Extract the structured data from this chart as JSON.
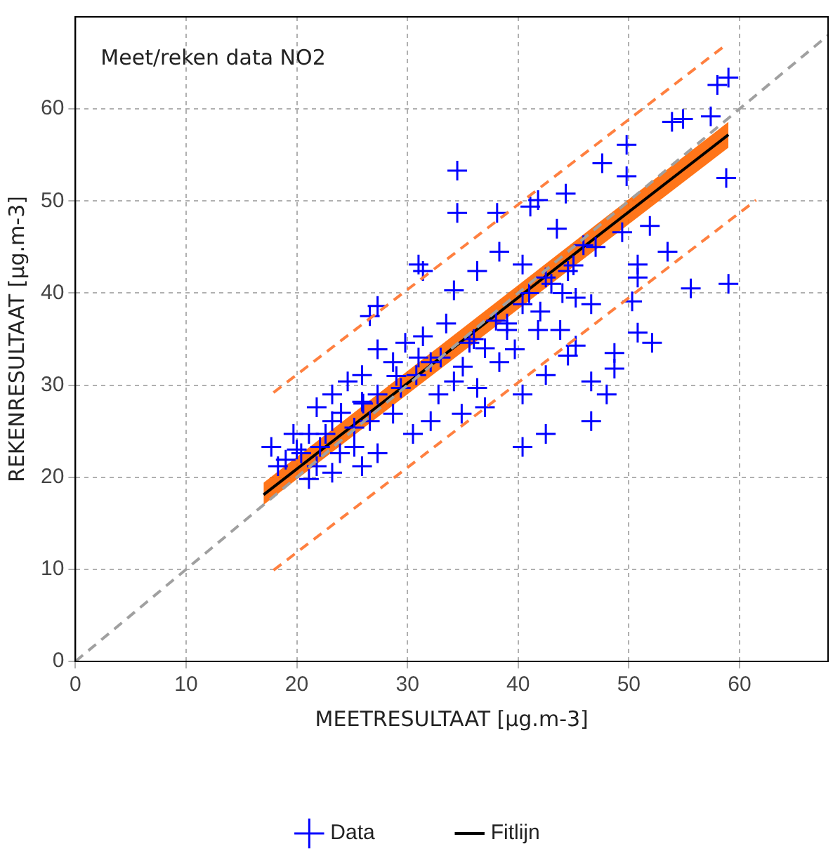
{
  "chart_data": {
    "type": "scatter",
    "title": "Meet/reken data NO2",
    "xlabel": "MEETRESULTAAT [µg.m-3]",
    "ylabel": "REKENRESULTAAT [µg.m-3]",
    "xlim": [
      0,
      68
    ],
    "ylim": [
      0,
      70
    ],
    "xticks": [
      0,
      10,
      20,
      30,
      40,
      50,
      60
    ],
    "yticks": [
      0,
      10,
      20,
      30,
      40,
      50,
      60
    ],
    "grid": true,
    "legend": "bottom",
    "series": [
      {
        "type": "line",
        "color": "#a0a0a0",
        "line_style": "dashed",
        "marker": "none",
        "x": [
          0,
          68
        ],
        "values": [
          0,
          68
        ]
      },
      {
        "type": "line",
        "color": "#ff8040",
        "line_style": "dashed",
        "marker": "none",
        "x": [
          17.9,
          58.6
        ],
        "values": [
          29.2,
          66.8
        ]
      },
      {
        "type": "line",
        "color": "#ff8040",
        "line_style": "dashed",
        "marker": "none",
        "x": [
          17.9,
          61.5
        ],
        "values": [
          9.9,
          50.1
        ]
      },
      {
        "name": "Data",
        "color": "#0000ff",
        "marker": "cross",
        "x": [
          59,
          58,
          53.9,
          54.9,
          57.4,
          34.5,
          47.6,
          49.8,
          49.8,
          58.8,
          44.3,
          41.1,
          41.8,
          38.1,
          34.5,
          43.5,
          45.9,
          49.4,
          51.9,
          53.5,
          50.8,
          50.8,
          55.6,
          59,
          50.3,
          50.8,
          48.7,
          52.1,
          31,
          31.4,
          27.3,
          26.6,
          34.2,
          36.3,
          38.3,
          40.4,
          42.5,
          44.5,
          46.6,
          45.2,
          40.4,
          39,
          41.8,
          43.8,
          45.2,
          39.7,
          38.3,
          35.6,
          33.5,
          31.4,
          29.8,
          28.7,
          32.1,
          34.2,
          36.3,
          37,
          34.9,
          32.8,
          40.4,
          42.5,
          40.4,
          42.5,
          46.6,
          48,
          46.6,
          44.5,
          48.7,
          30.5,
          32.1,
          28.7,
          27.3,
          25.9,
          24.6,
          23.2,
          21.8,
          23.2,
          25.2,
          26.6,
          21.1,
          19.7,
          20.4,
          19,
          22.1,
          23.9,
          25.2,
          17.7,
          18.3,
          21.8,
          23.2,
          25.9,
          27.3,
          22.6,
          25.9,
          27.3,
          29.4,
          30.8,
          21.1,
          33,
          36,
          38,
          41,
          43,
          45,
          47,
          29,
          31,
          35,
          37,
          39,
          42,
          44,
          24,
          26,
          20
        ],
        "values": [
          63.4,
          62.6,
          58.6,
          58.9,
          59.2,
          53.3,
          54.1,
          56.1,
          52.7,
          52.5,
          50.8,
          49.4,
          50.1,
          48.7,
          48.7,
          47,
          45.2,
          46.6,
          47.3,
          44.5,
          43.1,
          41.7,
          40.5,
          41,
          39.1,
          35.7,
          33.5,
          34.6,
          43.1,
          42.4,
          38.6,
          37.5,
          40.3,
          42.4,
          44.5,
          43.1,
          41.7,
          42.4,
          38.8,
          39.5,
          38.8,
          36.7,
          36,
          36,
          34.3,
          33.9,
          32.5,
          34.6,
          36.7,
          35.3,
          34.6,
          32.5,
          32.5,
          30.4,
          29.7,
          27.6,
          26.9,
          29,
          29,
          31.1,
          23.3,
          24.7,
          26.1,
          29,
          30.4,
          33.2,
          31.8,
          24.7,
          26.1,
          26.9,
          29,
          28.2,
          30.4,
          29,
          27.6,
          26.1,
          25.4,
          26.1,
          24.7,
          24.7,
          22.6,
          21.9,
          23.3,
          22.6,
          23.3,
          23.3,
          21.2,
          21.2,
          20.5,
          21.2,
          22.6,
          24.7,
          31.1,
          33.9,
          29.7,
          31.1,
          19.8,
          33,
          35,
          37,
          40,
          41,
          43,
          45,
          31,
          33,
          32,
          34,
          36,
          38,
          40,
          27,
          28,
          23
        ]
      },
      {
        "type": "line",
        "name": "Fitlijn",
        "color": "#000000",
        "line_style": "solid",
        "marker": "none",
        "x": [
          17,
          59
        ],
        "values": [
          18.1,
          57.2
        ],
        "lower": [
          17,
          55.8
        ],
        "upper": [
          19.4,
          58.6
        ]
      }
    ]
  }
}
